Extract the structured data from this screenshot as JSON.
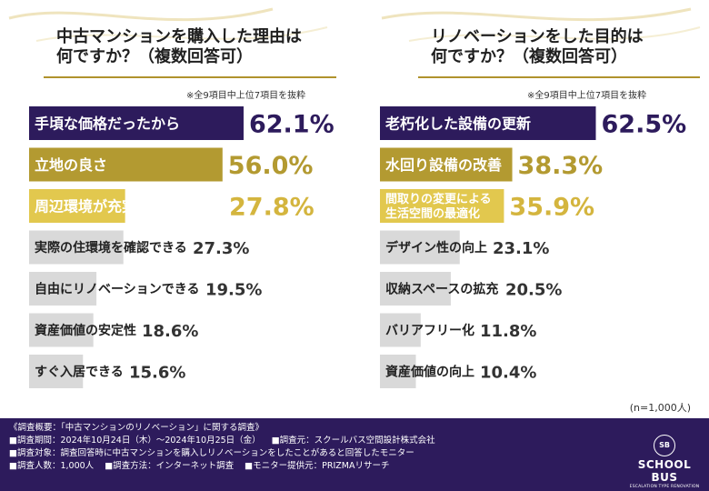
{
  "chart_data": [
    {
      "type": "bar",
      "title": "中古マンションを購入した理由は何ですか？（複数回答可）",
      "title_lines": [
        "中古マンションを購入した理由は",
        "何ですか？（複数回答可）"
      ],
      "note": "※全9項目中上位7項目を抜粋",
      "unit": "%",
      "categories": [
        "手頃な価格だったから",
        "立地の良さ",
        "周辺環境が充実していたから",
        "実際の住環境を確認できる",
        "自由にリノベーションできる",
        "資産価値の安定性",
        "すぐ入居できる"
      ],
      "label_lines": [
        [
          "手頃な価格だったから"
        ],
        [
          "立地の良さ"
        ],
        [
          "周辺環境が充実していたから"
        ],
        [
          "実際の住環境を確認できる"
        ],
        [
          "自由にリノベーションできる"
        ],
        [
          "資産価値の安定性"
        ],
        [
          "すぐ入居できる"
        ]
      ],
      "values": [
        62.1,
        56.0,
        27.8,
        27.3,
        19.5,
        18.6,
        15.6
      ],
      "value_labels": [
        "62.1%",
        "56.0%",
        "27.8%",
        "27.3%",
        "19.5%",
        "18.6%",
        "15.6%"
      ],
      "bar_colors": [
        "#2d1b5c",
        "#b39a31",
        "#e2c84e",
        "#d9d9d9",
        "#d9d9d9",
        "#d9d9d9",
        "#d9d9d9"
      ],
      "label_colors": [
        "#ffffff",
        "#ffffff",
        "#ffffff",
        "#222222",
        "#222222",
        "#222222",
        "#222222"
      ],
      "value_colors": [
        "#2d1b5c",
        "#b39a31",
        "#d4b53e",
        "#333333",
        "#333333",
        "#333333",
        "#333333"
      ]
    },
    {
      "type": "bar",
      "title": "リノベーションをした目的は何ですか？（複数回答可）",
      "title_lines": [
        "リノベーションをした目的は",
        "何ですか？（複数回答可）"
      ],
      "note": "※全9項目中上位7項目を抜粋",
      "unit": "%",
      "categories": [
        "老朽化した設備の更新",
        "水回り設備の改善",
        "間取りの変更による生活空間の最適化",
        "デザイン性の向上",
        "収納スペースの拡充",
        "バリアフリー化",
        "資産価値の向上"
      ],
      "label_lines": [
        [
          "老朽化した設備の更新"
        ],
        [
          "水回り設備の改善"
        ],
        [
          "間取りの変更による",
          "生活空間の最適化"
        ],
        [
          "デザイン性の向上"
        ],
        [
          "収納スペースの拡充"
        ],
        [
          "バリアフリー化"
        ],
        [
          "資産価値の向上"
        ]
      ],
      "values": [
        62.5,
        38.3,
        35.9,
        23.1,
        20.5,
        11.8,
        10.4
      ],
      "value_labels": [
        "62.5%",
        "38.3%",
        "35.9%",
        "23.1%",
        "20.5%",
        "11.8%",
        "10.4%"
      ],
      "bar_colors": [
        "#2d1b5c",
        "#b39a31",
        "#e2c84e",
        "#d9d9d9",
        "#d9d9d9",
        "#d9d9d9",
        "#d9d9d9"
      ],
      "label_colors": [
        "#ffffff",
        "#ffffff",
        "#ffffff",
        "#222222",
        "#222222",
        "#222222",
        "#222222"
      ],
      "value_colors": [
        "#2d1b5c",
        "#b39a31",
        "#d4b53e",
        "#333333",
        "#333333",
        "#333333",
        "#333333"
      ]
    }
  ],
  "sample_size": "(n=1,000人)",
  "footer": {
    "lines": [
      [
        "《調査概要：「中古マンションのリノベーション」に関する調査》"
      ],
      [
        "■調査期間：2024年10月24日（木）～2024年10月25日（金）",
        "■調査元：スクールバス空間設計株式会社"
      ],
      [
        "■調査対象：調査回答時に中古マンションを購入しリノベーションをしたことがあると回答したモニター"
      ],
      [
        "■調査人数：1,000人",
        "■調査方法：インターネット調査",
        "■モニター提供元：PRIZMAリサーチ"
      ]
    ],
    "logo_emblem": "SB",
    "logo_name": "SCHOOL BUS",
    "logo_tagline": "ESCALATION TYPE RENOVATION"
  },
  "colors": {
    "navy": "#2d1b5c",
    "gold": "#b39a31",
    "light_gold": "#e2c84e",
    "gray": "#d9d9d9"
  }
}
